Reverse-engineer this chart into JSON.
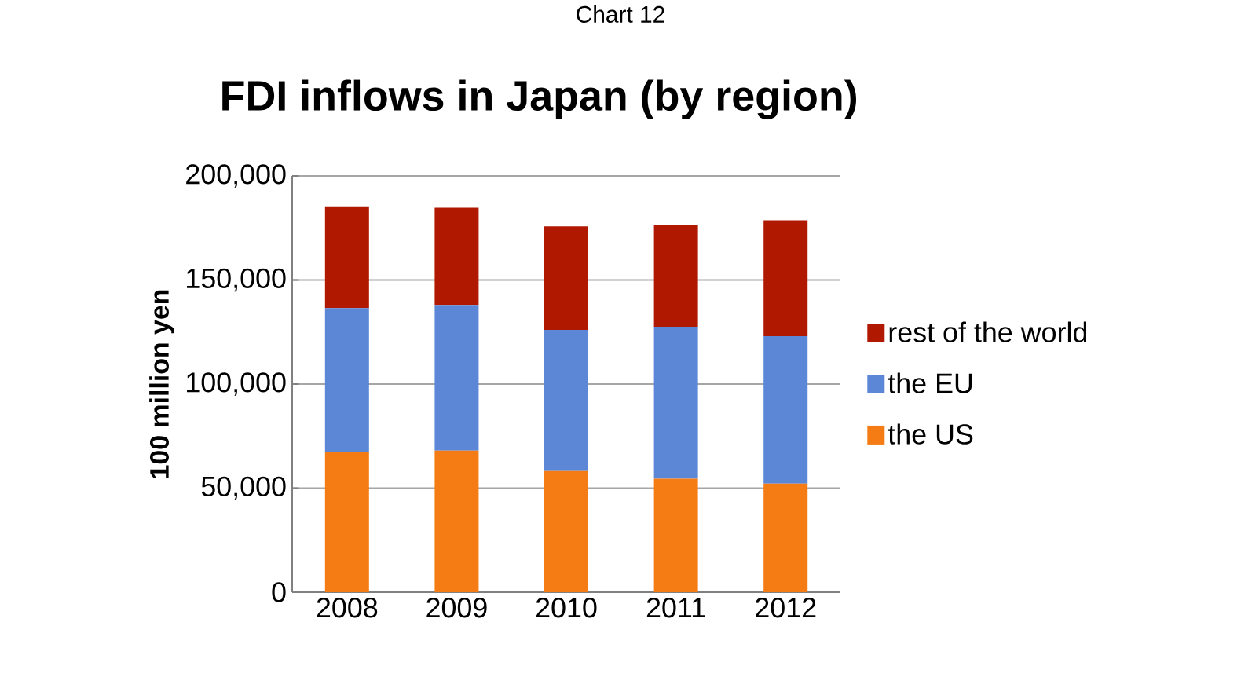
{
  "chart_data": {
    "type": "bar",
    "stacked": true,
    "title": "FDI inflows in Japan (by region)",
    "ylabel": "100 million yen",
    "annotations": [
      "Chart 12"
    ],
    "categories": [
      "2008",
      "2009",
      "2010",
      "2011",
      "2012"
    ],
    "series": [
      {
        "name": "the US",
        "color": "#f57c14",
        "values": [
          67300,
          68000,
          58200,
          54500,
          52200
        ]
      },
      {
        "name": "the EU",
        "color": "#5b87d6",
        "values": [
          69200,
          70000,
          67800,
          73000,
          70800
        ]
      },
      {
        "name": "rest of the world",
        "color": "#b01800",
        "values": [
          48900,
          46700,
          49700,
          48900,
          55700
        ]
      }
    ],
    "ylim": [
      0,
      200000
    ],
    "yticks": [
      0,
      {
        "value": 50000,
        "label": "50,000"
      },
      {
        "value": 100000,
        "label": "100,000"
      },
      {
        "value": 150000,
        "label": "150,000"
      },
      {
        "value": 200000,
        "label": "200,000"
      }
    ],
    "grid": "y",
    "legend": "right"
  }
}
